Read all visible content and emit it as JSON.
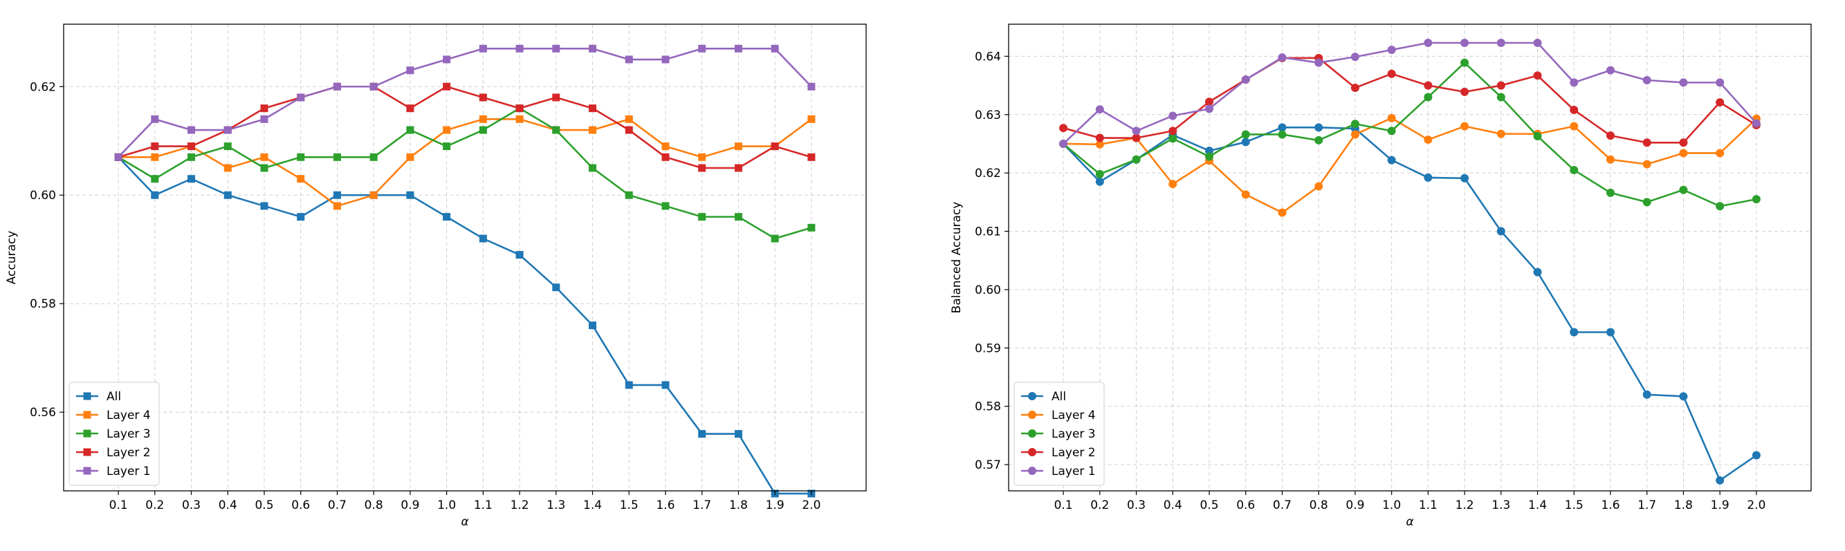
{
  "chart_data": [
    {
      "type": "line",
      "xlabel": "α",
      "ylabel": "Accuracy",
      "x": [
        0.1,
        0.2,
        0.3,
        0.4,
        0.5,
        0.6,
        0.7,
        0.8,
        0.9,
        1.0,
        1.1,
        1.2,
        1.3,
        1.4,
        1.5,
        1.6,
        1.7,
        1.8,
        1.9,
        2.0
      ],
      "x_tick_labels": [
        "0.1",
        "0.2",
        "0.3",
        "0.4",
        "0.5",
        "0.6",
        "0.7",
        "0.8",
        "0.9",
        "1.0",
        "1.1",
        "1.2",
        "1.3",
        "1.4",
        "1.5",
        "1.6",
        "1.7",
        "1.8",
        "1.9",
        "2.0"
      ],
      "ylim": [
        0.5455,
        0.6315
      ],
      "y_ticks": [
        0.56,
        0.58,
        0.6,
        0.62
      ],
      "y_tick_labels": [
        "0.56",
        "0.58",
        "0.60",
        "0.62"
      ],
      "marker": "square",
      "grid": true,
      "legend_position": "lower-left",
      "series": [
        {
          "name": "All",
          "color": "#1f77b4",
          "values": [
            0.607,
            0.6,
            0.603,
            0.6,
            0.598,
            0.596,
            0.6,
            0.6,
            0.6,
            0.596,
            0.592,
            0.589,
            0.583,
            0.576,
            0.565,
            0.565,
            0.556,
            0.556,
            0.545,
            0.545
          ]
        },
        {
          "name": "Layer 4",
          "color": "#ff7f0e",
          "values": [
            0.607,
            0.607,
            0.609,
            0.605,
            0.607,
            0.603,
            0.598,
            0.6,
            0.607,
            0.612,
            0.614,
            0.614,
            0.612,
            0.612,
            0.614,
            0.609,
            0.607,
            0.609,
            0.609,
            0.614
          ]
        },
        {
          "name": "Layer 3",
          "color": "#2ca02c",
          "values": [
            0.607,
            0.603,
            0.607,
            0.609,
            0.605,
            0.607,
            0.607,
            0.607,
            0.612,
            0.609,
            0.612,
            0.616,
            0.612,
            0.605,
            0.6,
            0.598,
            0.596,
            0.596,
            0.592,
            0.594
          ]
        },
        {
          "name": "Layer 2",
          "color": "#d62728",
          "values": [
            0.607,
            0.609,
            0.609,
            0.612,
            0.616,
            0.618,
            0.62,
            0.62,
            0.616,
            0.62,
            0.618,
            0.616,
            0.618,
            0.616,
            0.612,
            0.607,
            0.605,
            0.605,
            0.609,
            0.607
          ]
        },
        {
          "name": "Layer 1",
          "color": "#9467bd",
          "values": [
            0.607,
            0.614,
            0.612,
            0.612,
            0.614,
            0.618,
            0.62,
            0.62,
            0.623,
            0.625,
            0.627,
            0.627,
            0.627,
            0.627,
            0.625,
            0.625,
            0.627,
            0.627,
            0.627,
            0.62
          ]
        }
      ]
    },
    {
      "type": "line",
      "xlabel": "α",
      "ylabel": "Balanced Accuracy",
      "x": [
        0.1,
        0.2,
        0.3,
        0.4,
        0.5,
        0.6,
        0.7,
        0.8,
        0.9,
        1.0,
        1.1,
        1.2,
        1.3,
        1.4,
        1.5,
        1.6,
        1.7,
        1.8,
        1.9,
        2.0
      ],
      "x_tick_labels": [
        "0.1",
        "0.2",
        "0.3",
        "0.4",
        "0.5",
        "0.6",
        "0.7",
        "0.8",
        "0.9",
        "1.0",
        "1.1",
        "1.2",
        "1.3",
        "1.4",
        "1.5",
        "1.6",
        "1.7",
        "1.8",
        "1.9",
        "2.0"
      ],
      "ylim": [
        0.5655,
        0.6455
      ],
      "y_ticks": [
        0.57,
        0.58,
        0.59,
        0.6,
        0.61,
        0.62,
        0.63,
        0.64
      ],
      "y_tick_labels": [
        "0.57",
        "0.58",
        "0.59",
        "0.60",
        "0.61",
        "0.62",
        "0.63",
        "0.64"
      ],
      "marker": "circle",
      "grid": true,
      "legend_position": "lower-left",
      "series": [
        {
          "name": "All",
          "color": "#1f77b4",
          "values": [
            0.625,
            0.6185,
            0.6223,
            0.6265,
            0.6238,
            0.6253,
            0.6278,
            0.6278,
            0.6276,
            0.6222,
            0.6192,
            0.6191,
            0.61,
            0.603,
            0.5927,
            0.5927,
            0.582,
            0.5817,
            0.5673,
            0.5716
          ]
        },
        {
          "name": "Layer 4",
          "color": "#ff7f0e",
          "values": [
            0.625,
            0.6249,
            0.626,
            0.6181,
            0.6221,
            0.6163,
            0.6132,
            0.6177,
            0.6266,
            0.6294,
            0.6257,
            0.628,
            0.6267,
            0.6267,
            0.628,
            0.6223,
            0.6215,
            0.6234,
            0.6234,
            0.6293
          ]
        },
        {
          "name": "Layer 3",
          "color": "#2ca02c",
          "values": [
            0.625,
            0.6198,
            0.6223,
            0.6259,
            0.6228,
            0.6266,
            0.6266,
            0.6256,
            0.6284,
            0.6272,
            0.633,
            0.6389,
            0.633,
            0.6263,
            0.6205,
            0.6166,
            0.615,
            0.6171,
            0.6143,
            0.6155
          ]
        },
        {
          "name": "Layer 2",
          "color": "#d62728",
          "values": [
            0.6277,
            0.626,
            0.626,
            0.6272,
            0.6322,
            0.636,
            0.6397,
            0.6397,
            0.6346,
            0.637,
            0.635,
            0.6339,
            0.635,
            0.6367,
            0.6308,
            0.6264,
            0.6252,
            0.6252,
            0.6321,
            0.6282
          ]
        },
        {
          "name": "Layer 1",
          "color": "#9467bd",
          "values": [
            0.625,
            0.6309,
            0.6272,
            0.6298,
            0.631,
            0.636,
            0.6398,
            0.6389,
            0.6399,
            0.6411,
            0.6423,
            0.6423,
            0.6423,
            0.6423,
            0.6355,
            0.6376,
            0.6359,
            0.6355,
            0.6355,
            0.6285
          ]
        }
      ]
    }
  ]
}
